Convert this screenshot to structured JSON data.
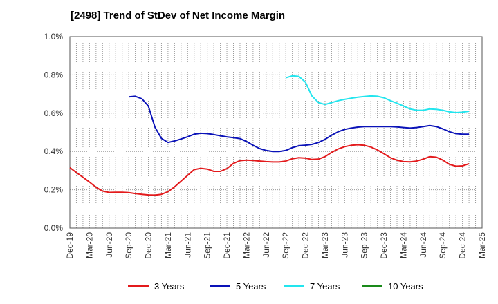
{
  "chart_data": {
    "type": "line",
    "title": "[2498]  Trend of StDev of Net Income Margin",
    "xlabel": "",
    "ylabel": "",
    "x_ticks": [
      "Dec-19",
      "Mar-20",
      "Jun-20",
      "Sep-20",
      "Dec-20",
      "Mar-21",
      "Jun-21",
      "Sep-21",
      "Dec-21",
      "Mar-22",
      "Jun-22",
      "Sep-22",
      "Dec-22",
      "Mar-23",
      "Jun-23",
      "Sep-23",
      "Dec-23",
      "Mar-24",
      "Jun-24",
      "Sep-24",
      "Dec-24",
      "Mar-25"
    ],
    "y_ticks": [
      "0.0%",
      "0.2%",
      "0.4%",
      "0.6%",
      "0.8%",
      "1.0%"
    ],
    "ylim": [
      0,
      1.0
    ],
    "y_unit": "%",
    "grid": true,
    "legend_position": "bottom",
    "series": [
      {
        "name": "3 Years",
        "color": "#e31a1c",
        "points": [
          [
            "Dec-19",
            0.315
          ],
          [
            "Jan-20",
            0.29
          ],
          [
            "Feb-20",
            0.265
          ],
          [
            "Mar-20",
            0.24
          ],
          [
            "Apr-20",
            0.213
          ],
          [
            "May-20",
            0.193
          ],
          [
            "Jun-20",
            0.186
          ],
          [
            "Jul-20",
            0.187
          ],
          [
            "Aug-20",
            0.187
          ],
          [
            "Sep-20",
            0.185
          ],
          [
            "Oct-20",
            0.18
          ],
          [
            "Nov-20",
            0.176
          ],
          [
            "Dec-20",
            0.173
          ],
          [
            "Jan-21",
            0.172
          ],
          [
            "Feb-21",
            0.176
          ],
          [
            "Mar-21",
            0.19
          ],
          [
            "Apr-21",
            0.215
          ],
          [
            "May-21",
            0.245
          ],
          [
            "Jun-21",
            0.275
          ],
          [
            "Jul-21",
            0.305
          ],
          [
            "Aug-21",
            0.312
          ],
          [
            "Sep-21",
            0.308
          ],
          [
            "Oct-21",
            0.296
          ],
          [
            "Nov-21",
            0.296
          ],
          [
            "Dec-21",
            0.31
          ],
          [
            "Jan-22",
            0.338
          ],
          [
            "Feb-22",
            0.352
          ],
          [
            "Mar-22",
            0.355
          ],
          [
            "Apr-22",
            0.353
          ],
          [
            "May-22",
            0.35
          ],
          [
            "Jun-22",
            0.347
          ],
          [
            "Jul-22",
            0.345
          ],
          [
            "Aug-22",
            0.345
          ],
          [
            "Sep-22",
            0.35
          ],
          [
            "Oct-22",
            0.362
          ],
          [
            "Nov-22",
            0.367
          ],
          [
            "Dec-22",
            0.365
          ],
          [
            "Jan-23",
            0.358
          ],
          [
            "Feb-23",
            0.36
          ],
          [
            "Mar-23",
            0.373
          ],
          [
            "Apr-23",
            0.395
          ],
          [
            "May-23",
            0.413
          ],
          [
            "Jun-23",
            0.425
          ],
          [
            "Jul-23",
            0.432
          ],
          [
            "Aug-23",
            0.435
          ],
          [
            "Sep-23",
            0.432
          ],
          [
            "Oct-23",
            0.423
          ],
          [
            "Nov-23",
            0.408
          ],
          [
            "Dec-23",
            0.388
          ],
          [
            "Jan-24",
            0.367
          ],
          [
            "Feb-24",
            0.354
          ],
          [
            "Mar-24",
            0.347
          ],
          [
            "Apr-24",
            0.346
          ],
          [
            "May-24",
            0.35
          ],
          [
            "Jun-24",
            0.36
          ],
          [
            "Jul-24",
            0.373
          ],
          [
            "Aug-24",
            0.37
          ],
          [
            "Sep-24",
            0.355
          ],
          [
            "Oct-24",
            0.333
          ],
          [
            "Nov-24",
            0.323
          ],
          [
            "Dec-24",
            0.325
          ],
          [
            "Jan-25",
            0.336
          ]
        ]
      },
      {
        "name": "5 Years",
        "color": "#0a12b8",
        "points": [
          [
            "Sep-20",
            0.685
          ],
          [
            "Oct-20",
            0.688
          ],
          [
            "Nov-20",
            0.675
          ],
          [
            "Dec-20",
            0.637
          ],
          [
            "Jan-21",
            0.527
          ],
          [
            "Feb-21",
            0.468
          ],
          [
            "Mar-21",
            0.447
          ],
          [
            "Apr-21",
            0.455
          ],
          [
            "May-21",
            0.465
          ],
          [
            "Jun-21",
            0.477
          ],
          [
            "Jul-21",
            0.49
          ],
          [
            "Aug-21",
            0.495
          ],
          [
            "Sep-21",
            0.493
          ],
          [
            "Oct-21",
            0.488
          ],
          [
            "Nov-21",
            0.482
          ],
          [
            "Dec-21",
            0.476
          ],
          [
            "Jan-22",
            0.472
          ],
          [
            "Feb-22",
            0.467
          ],
          [
            "Mar-22",
            0.452
          ],
          [
            "Apr-22",
            0.432
          ],
          [
            "May-22",
            0.415
          ],
          [
            "Jun-22",
            0.405
          ],
          [
            "Jul-22",
            0.4
          ],
          [
            "Aug-22",
            0.4
          ],
          [
            "Sep-22",
            0.405
          ],
          [
            "Oct-22",
            0.42
          ],
          [
            "Nov-22",
            0.43
          ],
          [
            "Dec-22",
            0.433
          ],
          [
            "Jan-23",
            0.437
          ],
          [
            "Feb-23",
            0.447
          ],
          [
            "Mar-23",
            0.463
          ],
          [
            "Apr-23",
            0.485
          ],
          [
            "May-23",
            0.503
          ],
          [
            "Jun-23",
            0.515
          ],
          [
            "Jul-23",
            0.522
          ],
          [
            "Aug-23",
            0.527
          ],
          [
            "Sep-23",
            0.53
          ],
          [
            "Oct-23",
            0.53
          ],
          [
            "Nov-23",
            0.53
          ],
          [
            "Dec-23",
            0.53
          ],
          [
            "Jan-24",
            0.53
          ],
          [
            "Feb-24",
            0.528
          ],
          [
            "Mar-24",
            0.525
          ],
          [
            "Apr-24",
            0.522
          ],
          [
            "May-24",
            0.525
          ],
          [
            "Jun-24",
            0.53
          ],
          [
            "Jul-24",
            0.535
          ],
          [
            "Aug-24",
            0.53
          ],
          [
            "Sep-24",
            0.518
          ],
          [
            "Oct-24",
            0.503
          ],
          [
            "Nov-24",
            0.493
          ],
          [
            "Dec-24",
            0.49
          ],
          [
            "Jan-25",
            0.49
          ]
        ]
      },
      {
        "name": "7 Years",
        "color": "#22e5ee",
        "points": [
          [
            "Sep-22",
            0.785
          ],
          [
            "Oct-22",
            0.795
          ],
          [
            "Nov-22",
            0.792
          ],
          [
            "Dec-22",
            0.762
          ],
          [
            "Jan-23",
            0.69
          ],
          [
            "Feb-23",
            0.655
          ],
          [
            "Mar-23",
            0.645
          ],
          [
            "Apr-23",
            0.655
          ],
          [
            "May-23",
            0.665
          ],
          [
            "Jun-23",
            0.672
          ],
          [
            "Jul-23",
            0.678
          ],
          [
            "Aug-23",
            0.683
          ],
          [
            "Sep-23",
            0.687
          ],
          [
            "Oct-23",
            0.69
          ],
          [
            "Nov-23",
            0.688
          ],
          [
            "Dec-23",
            0.68
          ],
          [
            "Jan-24",
            0.665
          ],
          [
            "Feb-24",
            0.652
          ],
          [
            "Mar-24",
            0.637
          ],
          [
            "Apr-24",
            0.622
          ],
          [
            "May-24",
            0.615
          ],
          [
            "Jun-24",
            0.615
          ],
          [
            "Jul-24",
            0.622
          ],
          [
            "Aug-24",
            0.62
          ],
          [
            "Sep-24",
            0.615
          ],
          [
            "Oct-24",
            0.607
          ],
          [
            "Nov-24",
            0.603
          ],
          [
            "Dec-24",
            0.605
          ],
          [
            "Jan-25",
            0.61
          ]
        ]
      },
      {
        "name": "10 Years",
        "color": "#1a8a1a",
        "points": []
      }
    ]
  }
}
